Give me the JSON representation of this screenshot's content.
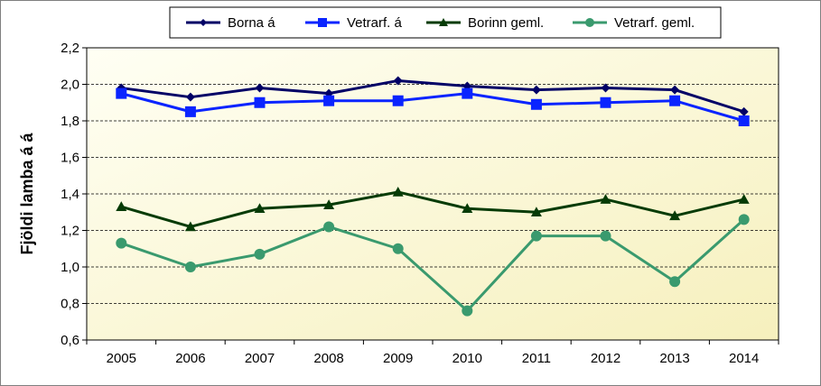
{
  "chart_data": {
    "type": "line",
    "title": "",
    "xlabel": "",
    "ylabel": "Fjöldi lamba á á",
    "categories": [
      "2005",
      "2006",
      "2007",
      "2008",
      "2009",
      "2010",
      "2011",
      "2012",
      "2013",
      "2014"
    ],
    "ylim": [
      0.6,
      2.2
    ],
    "yticks": [
      "0,6",
      "0,8",
      "1,0",
      "1,2",
      "1,4",
      "1,6",
      "1,8",
      "2,0",
      "2,2"
    ],
    "ytick_values": [
      0.6,
      0.8,
      1.0,
      1.2,
      1.4,
      1.6,
      1.8,
      2.0,
      2.2
    ],
    "grid": "horizontal dashed",
    "legend_position": "top",
    "plot_background": "light yellow gradient",
    "series": [
      {
        "name": "Borna á",
        "color": "#000066",
        "marker": "diamond",
        "values": [
          1.98,
          1.93,
          1.98,
          1.95,
          2.02,
          1.99,
          1.97,
          1.98,
          1.97,
          1.85
        ]
      },
      {
        "name": "Vetrarf. á",
        "color": "#0a24ff",
        "marker": "square",
        "values": [
          1.95,
          1.85,
          1.9,
          1.91,
          1.91,
          1.95,
          1.89,
          1.9,
          1.91,
          1.8
        ]
      },
      {
        "name": "Borinn geml.",
        "color": "#063b06",
        "marker": "triangle",
        "values": [
          1.33,
          1.22,
          1.32,
          1.34,
          1.41,
          1.32,
          1.3,
          1.37,
          1.28,
          1.37
        ]
      },
      {
        "name": "Vetrarf. geml.",
        "color": "#3a9a6e",
        "marker": "circle",
        "values": [
          1.13,
          1.0,
          1.07,
          1.22,
          1.1,
          0.76,
          1.17,
          1.17,
          0.92,
          1.26
        ]
      }
    ]
  }
}
